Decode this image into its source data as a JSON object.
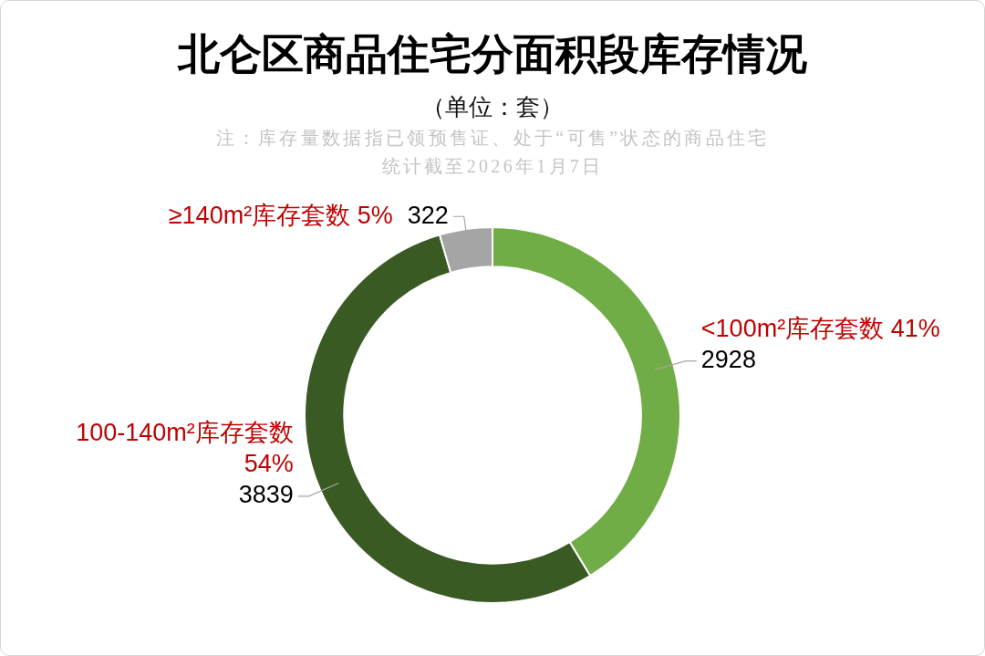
{
  "chart_data": {
    "type": "donut",
    "title": "北仑区商品住宅分面积段库存情况",
    "subtitle": "（单位：套）",
    "annotations": [
      "注：库存量数据指已领预售证、处于“可售”状态的商品住宅",
      "统计截至2026年1月7日"
    ],
    "categories": [
      "<100m²库存套数 41%",
      "100-140m²库存套数 54%",
      "≥140m²库存套数 5%"
    ],
    "values": [
      2928,
      3839,
      322
    ],
    "colors": [
      "#70ad47",
      "#3a5a24",
      "#a5a5a5"
    ],
    "data_labels": true,
    "legend": false
  }
}
